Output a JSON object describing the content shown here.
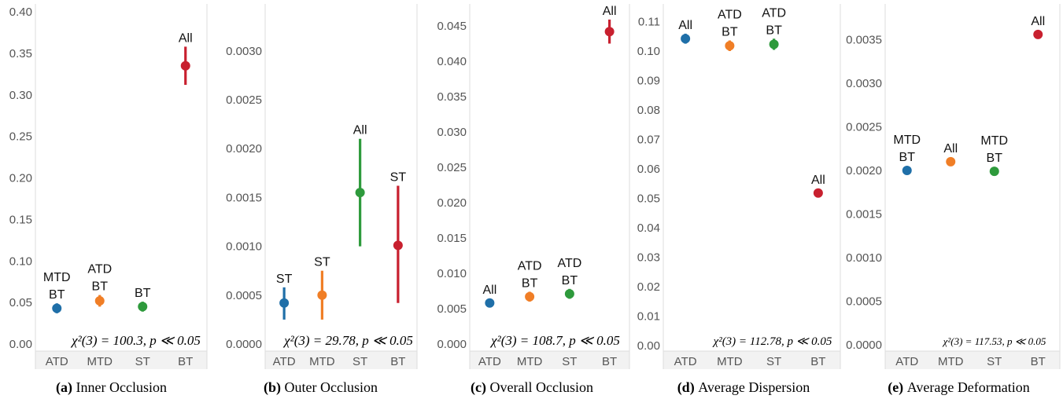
{
  "colors": {
    "ATD": "#1f6fa8",
    "MTD": "#f07e26",
    "ST": "#2e9a3c",
    "BT": "#c8202f",
    "axis_line": "#dcdcdc",
    "band": "#f2f2f2",
    "tick_text": "#555555"
  },
  "chart_data": [
    {
      "type": "scatter",
      "caption_tag": "(a)",
      "caption": "Inner Occlusion",
      "categories": [
        "ATD",
        "MTD",
        "ST",
        "BT"
      ],
      "ylim": [
        0,
        0.4
      ],
      "yticks": [
        "0.00",
        "0.05",
        "0.10",
        "0.15",
        "0.20",
        "0.25",
        "0.30",
        "0.35",
        "0.40"
      ],
      "points": [
        {
          "category": "ATD",
          "mean": 0.043,
          "low": 0.037,
          "high": 0.049,
          "labels": [
            "MTD",
            "BT"
          ]
        },
        {
          "category": "MTD",
          "mean": 0.052,
          "low": 0.045,
          "high": 0.059,
          "labels": [
            "ATD",
            "BT"
          ]
        },
        {
          "category": "ST",
          "mean": 0.045,
          "low": 0.039,
          "high": 0.051,
          "labels": [
            "BT"
          ]
        },
        {
          "category": "BT",
          "mean": 0.335,
          "low": 0.312,
          "high": 0.358,
          "labels": [
            "All"
          ]
        }
      ],
      "statistic": "χ²(3) = 100.3, p ≪ 0.05"
    },
    {
      "type": "scatter",
      "caption_tag": "(b)",
      "caption": "Outer Occlusion",
      "categories": [
        "ATD",
        "MTD",
        "ST",
        "BT"
      ],
      "ylim": [
        0,
        0.0034
      ],
      "yticks": [
        "0.0000",
        "0.0005",
        "0.0010",
        "0.0015",
        "0.0020",
        "0.0025",
        "0.0030"
      ],
      "points": [
        {
          "category": "ATD",
          "mean": 0.00042,
          "low": 0.00025,
          "high": 0.00058,
          "labels": [
            "ST"
          ]
        },
        {
          "category": "MTD",
          "mean": 0.0005,
          "low": 0.00025,
          "high": 0.00075,
          "labels": [
            "ST"
          ]
        },
        {
          "category": "ST",
          "mean": 0.00155,
          "low": 0.001,
          "high": 0.0021,
          "labels": [
            "All"
          ]
        },
        {
          "category": "BT",
          "mean": 0.00101,
          "low": 0.00042,
          "high": 0.00162,
          "labels": [
            "ST"
          ]
        }
      ],
      "statistic": "χ²(3) = 29.78, p ≪ 0.05"
    },
    {
      "type": "scatter",
      "caption_tag": "(c)",
      "caption": "Overall Occlusion",
      "categories": [
        "ATD",
        "MTD",
        "ST",
        "BT"
      ],
      "ylim": [
        0,
        0.047
      ],
      "yticks": [
        "0.000",
        "0.005",
        "0.010",
        "0.015",
        "0.020",
        "0.025",
        "0.030",
        "0.035",
        "0.040",
        "0.045"
      ],
      "points": [
        {
          "category": "ATD",
          "mean": 0.0058,
          "low": 0.0052,
          "high": 0.0064,
          "labels": [
            "All"
          ]
        },
        {
          "category": "MTD",
          "mean": 0.0067,
          "low": 0.006,
          "high": 0.0074,
          "labels": [
            "ATD",
            "BT"
          ]
        },
        {
          "category": "ST",
          "mean": 0.0071,
          "low": 0.0064,
          "high": 0.0078,
          "labels": [
            "ATD",
            "BT"
          ]
        },
        {
          "category": "BT",
          "mean": 0.0442,
          "low": 0.0425,
          "high": 0.0459,
          "labels": [
            "All"
          ]
        }
      ],
      "statistic": "χ²(3) = 108.7, p ≪ 0.05"
    },
    {
      "type": "scatter",
      "caption_tag": "(d)",
      "caption": "Average Dispersion",
      "categories": [
        "ATD",
        "MTD",
        "ST",
        "BT"
      ],
      "ylim": [
        0,
        0.112
      ],
      "yticks": [
        "0.00",
        "0.01",
        "0.02",
        "0.03",
        "0.04",
        "0.05",
        "0.06",
        "0.07",
        "0.08",
        "0.09",
        "0.10",
        "0.11"
      ],
      "points": [
        {
          "category": "ATD",
          "mean": 0.1042,
          "low": 0.1025,
          "high": 0.1059,
          "labels": [
            "All"
          ]
        },
        {
          "category": "MTD",
          "mean": 0.1018,
          "low": 0.1,
          "high": 0.1036,
          "labels": [
            "ATD",
            "BT"
          ]
        },
        {
          "category": "ST",
          "mean": 0.1023,
          "low": 0.1004,
          "high": 0.1042,
          "labels": [
            "ATD",
            "BT"
          ]
        },
        {
          "category": "BT",
          "mean": 0.0518,
          "low": 0.0505,
          "high": 0.0531,
          "labels": [
            "All"
          ]
        }
      ],
      "statistic": "χ²(3) = 112.78, p ≪ 0.05"
    },
    {
      "type": "scatter",
      "caption_tag": "(e)",
      "caption": "Average Deformation",
      "categories": [
        "ATD",
        "MTD",
        "ST",
        "BT"
      ],
      "ylim": [
        0,
        0.00382
      ],
      "yticks": [
        "0.0000",
        "0.0005",
        "0.0010",
        "0.0015",
        "0.0020",
        "0.0025",
        "0.0030",
        "0.0035"
      ],
      "points": [
        {
          "category": "ATD",
          "mean": 0.002,
          "low": 0.00196,
          "high": 0.00204,
          "labels": [
            "MTD",
            "BT"
          ]
        },
        {
          "category": "MTD",
          "mean": 0.0021,
          "low": 0.00206,
          "high": 0.00214,
          "labels": [
            "All"
          ]
        },
        {
          "category": "ST",
          "mean": 0.00199,
          "low": 0.00194,
          "high": 0.00204,
          "labels": [
            "MTD",
            "BT"
          ]
        },
        {
          "category": "BT",
          "mean": 0.00356,
          "low": 0.00351,
          "high": 0.00361,
          "labels": [
            "All"
          ]
        }
      ],
      "statistic": "χ²(3) = 117.53, p ≪ 0.05"
    }
  ]
}
